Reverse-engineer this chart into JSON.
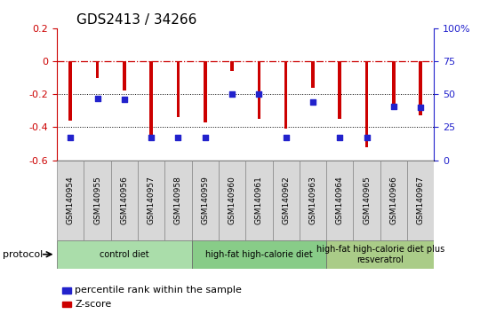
{
  "title": "GDS2413 / 34266",
  "samples": [
    "GSM140954",
    "GSM140955",
    "GSM140956",
    "GSM140957",
    "GSM140958",
    "GSM140959",
    "GSM140960",
    "GSM140961",
    "GSM140962",
    "GSM140963",
    "GSM140964",
    "GSM140965",
    "GSM140966",
    "GSM140967"
  ],
  "z_scores": [
    -0.36,
    -0.1,
    -0.18,
    -0.45,
    -0.34,
    -0.37,
    -0.06,
    -0.35,
    -0.41,
    -0.16,
    -0.35,
    -0.52,
    -0.28,
    -0.33
  ],
  "pct_ranks": [
    17,
    47,
    46,
    17,
    17,
    17,
    50,
    50,
    17,
    44,
    17,
    17,
    41,
    40
  ],
  "ylim_left": [
    -0.6,
    0.2
  ],
  "ylim_right": [
    0,
    100
  ],
  "dotted_lines": [
    -0.2,
    -0.4
  ],
  "bar_color": "#CC0000",
  "dot_color": "#2222CC",
  "bar_width": 0.12,
  "groups": [
    {
      "label": "control diet",
      "start": 0,
      "end": 5,
      "color": "#AADDAA"
    },
    {
      "label": "high-fat high-calorie diet",
      "start": 5,
      "end": 10,
      "color": "#88CC88"
    },
    {
      "label": "high-fat high-calorie diet plus\nresveratrol",
      "start": 10,
      "end": 14,
      "color": "#AACC88"
    }
  ],
  "protocol_label": "protocol",
  "legend_items": [
    {
      "color": "#CC0000",
      "label": "Z-score"
    },
    {
      "color": "#2222CC",
      "label": "percentile rank within the sample"
    }
  ],
  "right_tick_labels": [
    "0",
    "25",
    "50",
    "75",
    "100%"
  ],
  "right_tick_values": [
    0,
    25,
    50,
    75,
    100
  ],
  "left_tick_labels": [
    "0.2",
    "0",
    "-0.2",
    "-0.4",
    "-0.6"
  ],
  "left_tick_values": [
    0.2,
    0.0,
    -0.2,
    -0.4,
    -0.6
  ]
}
